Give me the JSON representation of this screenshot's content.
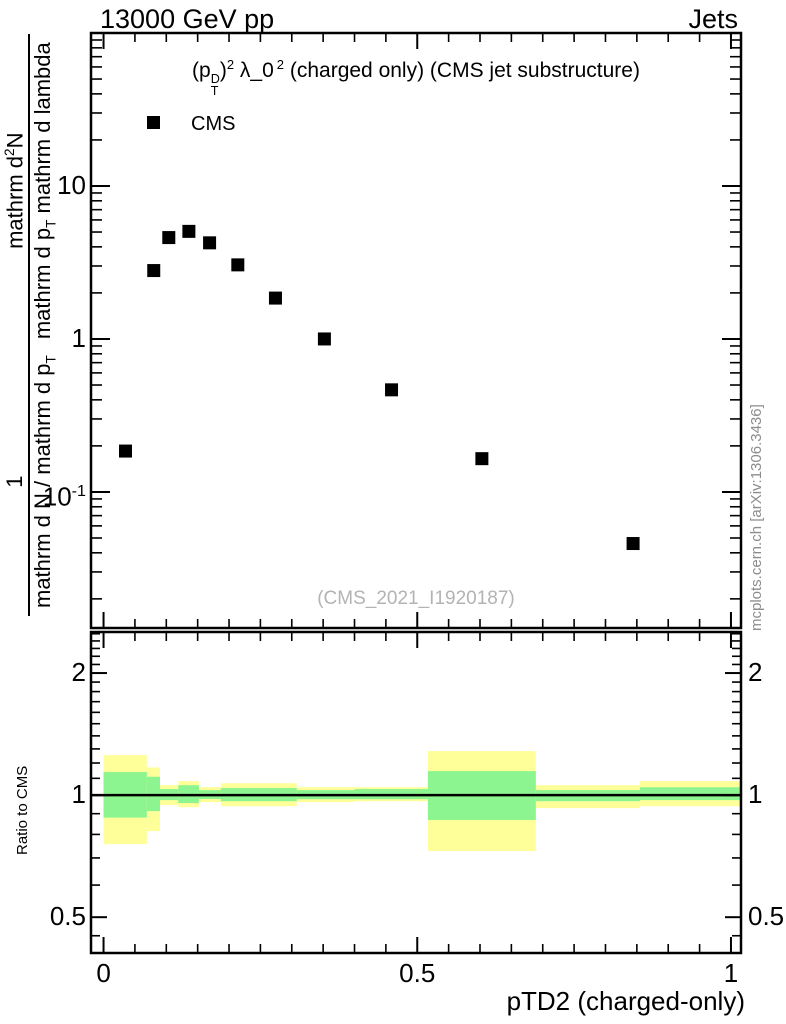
{
  "header": {
    "left_title": "13000 GeV pp",
    "right_title": "Jets"
  },
  "side_note": "mcplots.cern.ch [arXiv:1306.3436]",
  "chart_data": {
    "type": "scatter",
    "title": "(p_T^D)^2 λ_0^2 (charged only) (CMS jet substructure)",
    "title_parts": {
      "open": "(p",
      "p_sup": "D",
      "p_sub": "T",
      "close": ")",
      "exp1": "2",
      "lambda": " λ_0",
      "exp2": "2",
      "rest": " (charged only) (CMS jet substructure)"
    },
    "xlabel": "pTD2 (charged-only)",
    "ylabel_fraction_upper": {
      "num_pre": "mathrm d",
      "num_sup": "2",
      "num_post": "N",
      "den_pre": "mathrm d p",
      "den_sub": "T",
      "den_post": " mathrm d lambda"
    },
    "ylabel_fraction_lower": {
      "num": "1",
      "den_pre": "mathrm d N / mathrm d p",
      "den_sub": "T"
    },
    "ratio_ylabel": "Ratio to CMS",
    "annotation": "(CMS_2021_I1920187)",
    "legend": [
      {
        "label": "CMS",
        "marker": "filled-square",
        "color": "#000000"
      }
    ],
    "legend_position": "top-left",
    "grid": false,
    "x_scale": "linear",
    "y_scale": "log",
    "ratio_scale": "log",
    "x_range": [
      -0.02,
      1.016
    ],
    "y_range_main": [
      0.0129,
      100
    ],
    "ratio_range": [
      0.408,
      2.525
    ],
    "x_ticks": [
      {
        "t": "0",
        "v": 0
      },
      {
        "t": "0.5",
        "v": 0.5
      },
      {
        "t": "1",
        "v": 1
      }
    ],
    "x_minor_step": 0.05,
    "y_ticks_main": [
      {
        "base": "10",
        "sup": "",
        "v": 10
      },
      {
        "base": "1",
        "sup": "",
        "v": 1
      },
      {
        "base": "10",
        "sup": "-1",
        "v": 0.1
      }
    ],
    "ratio_ticks": [
      {
        "t": "2",
        "v": 2
      },
      {
        "t": "1",
        "v": 1
      },
      {
        "t": "0.5",
        "v": 0.5
      }
    ],
    "ratio_minor_ticks": [
      0.45,
      0.6,
      0.7,
      0.8,
      0.9,
      1.1,
      1.2,
      1.3,
      1.4,
      1.5,
      1.6,
      1.7,
      1.8,
      1.9,
      2.1,
      2.2,
      2.3,
      2.4,
      2.5
    ],
    "series": [
      {
        "name": "CMS",
        "marker": "filled-square",
        "color": "#000000",
        "points": [
          [
            0.035,
            0.185
          ],
          [
            0.08,
            2.8
          ],
          [
            0.104,
            4.6
          ],
          [
            0.136,
            5.05
          ],
          [
            0.169,
            4.25
          ],
          [
            0.214,
            3.05
          ],
          [
            0.274,
            1.85
          ],
          [
            0.352,
            1.0
          ],
          [
            0.459,
            0.465
          ],
          [
            0.603,
            0.165
          ],
          [
            0.844,
            0.046
          ]
        ]
      }
    ],
    "ratio_reference": 1.0,
    "ratio_bands": [
      {
        "x": [
          0.0,
          0.069
        ],
        "yellow": [
          0.757,
          1.255
        ],
        "green": [
          0.88,
          1.14
        ]
      },
      {
        "x": [
          0.069,
          0.09
        ],
        "yellow": [
          0.815,
          1.17
        ],
        "green": [
          0.913,
          1.11
        ]
      },
      {
        "x": [
          0.09,
          0.119
        ],
        "yellow": [
          0.945,
          1.058
        ],
        "green": [
          0.972,
          1.035
        ]
      },
      {
        "x": [
          0.119,
          0.152
        ],
        "yellow": [
          0.934,
          1.083
        ],
        "green": [
          0.956,
          1.058
        ]
      },
      {
        "x": [
          0.152,
          0.187
        ],
        "yellow": [
          0.961,
          1.046
        ],
        "green": [
          0.978,
          1.029
        ]
      },
      {
        "x": [
          0.187,
          0.308
        ],
        "yellow": [
          0.939,
          1.07
        ],
        "green": [
          0.966,
          1.041
        ]
      },
      {
        "x": [
          0.308,
          0.4
        ],
        "yellow": [
          0.961,
          1.046
        ],
        "green": [
          0.977,
          1.029
        ]
      },
      {
        "x": [
          0.4,
          0.517
        ],
        "yellow": [
          0.966,
          1.046
        ],
        "green": [
          0.977,
          1.035
        ]
      },
      {
        "x": [
          0.517,
          0.689
        ],
        "yellow": [
          0.728,
          1.284
        ],
        "green": [
          0.868,
          1.146
        ]
      },
      {
        "x": [
          0.689,
          0.855
        ],
        "yellow": [
          0.929,
          1.058
        ],
        "green": [
          0.966,
          1.029
        ]
      },
      {
        "x": [
          0.855,
          1.016
        ],
        "yellow": [
          0.939,
          1.083
        ],
        "green": [
          0.972,
          1.046
        ]
      }
    ],
    "colors": {
      "band_outer": "#ffff9a",
      "band_inner": "#8df58f",
      "ratio_line": "#000000",
      "marker": "#000000"
    }
  }
}
